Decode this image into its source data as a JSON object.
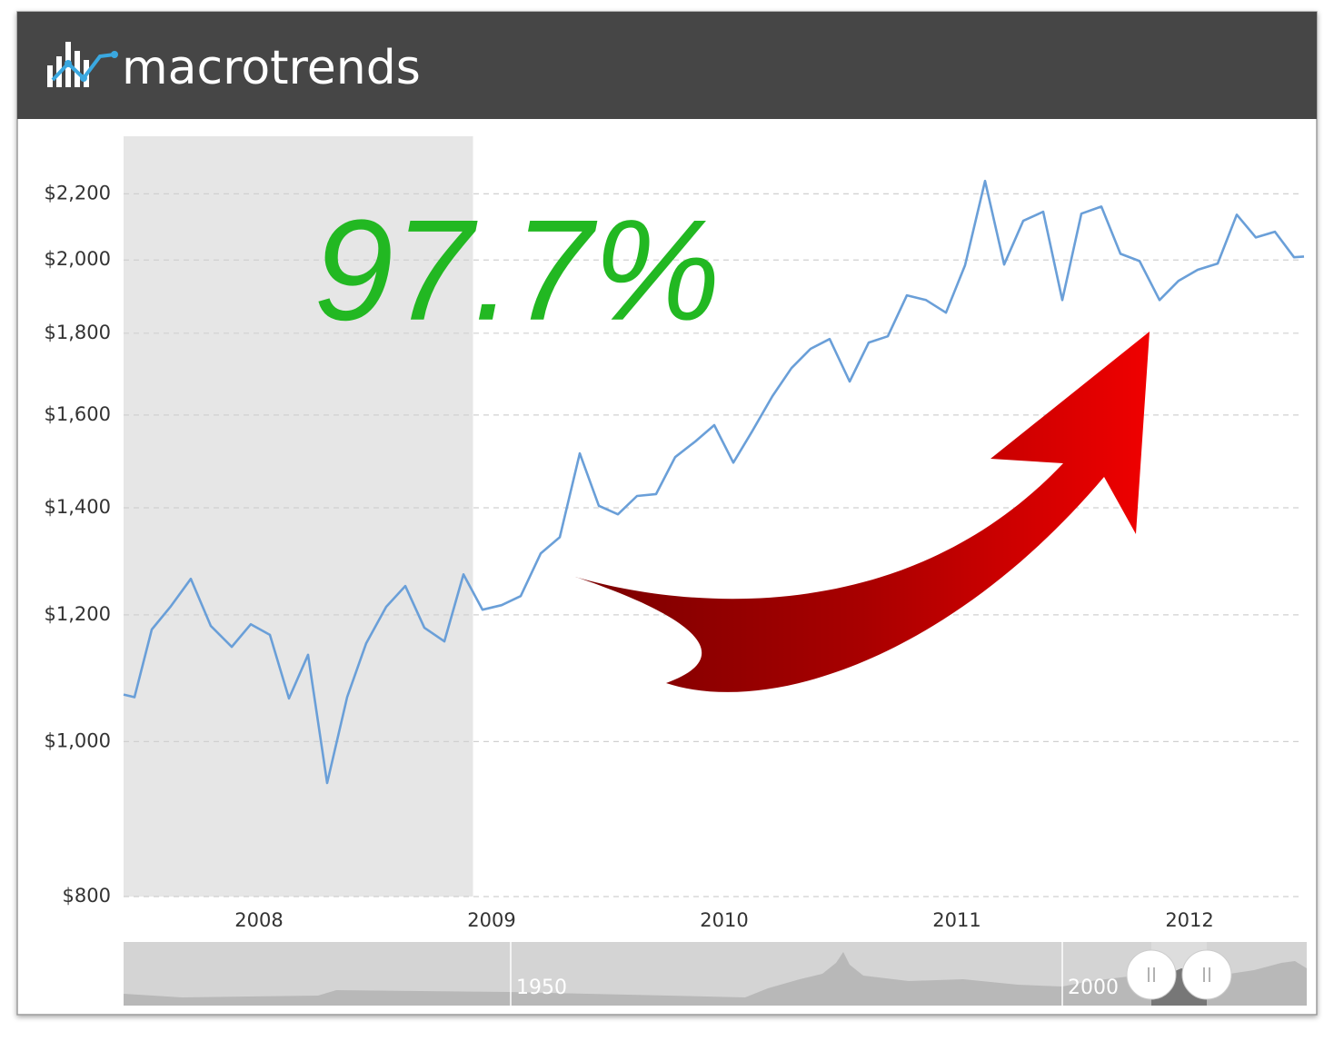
{
  "logo": "macrotrends",
  "chart_data": {
    "type": "line",
    "annotation": "97.7%",
    "yscale": "log",
    "grid": true,
    "ylim": [
      800,
      2390
    ],
    "yticks": [
      {
        "value": 800,
        "label": "$800"
      },
      {
        "value": 1000,
        "label": "$1,000"
      },
      {
        "value": 1200,
        "label": "$1,200"
      },
      {
        "value": 1400,
        "label": "$1,400"
      },
      {
        "value": 1600,
        "label": "$1,600"
      },
      {
        "value": 1800,
        "label": "$1,800"
      },
      {
        "value": 2000,
        "label": "$2,000"
      },
      {
        "value": 2200,
        "label": "$2,200"
      }
    ],
    "xlim": [
      2007.418,
      2012.492
    ],
    "xticks": [
      2008,
      2009,
      2010,
      2011,
      2012
    ],
    "shaded_range": [
      2007.418,
      2008.92
    ],
    "x": [
      2007.418,
      2007.465,
      2007.539,
      2007.621,
      2007.707,
      2007.793,
      2007.883,
      2007.965,
      2008.047,
      2008.129,
      2008.211,
      2008.293,
      2008.379,
      2008.461,
      2008.547,
      2008.629,
      2008.711,
      2008.797,
      2008.879,
      2008.961,
      2009.043,
      2009.125,
      2009.211,
      2009.293,
      2009.379,
      2009.461,
      2009.543,
      2009.625,
      2009.707,
      2009.789,
      2009.875,
      2009.957,
      2010.039,
      2010.121,
      2010.207,
      2010.289,
      2010.371,
      2010.453,
      2010.539,
      2010.621,
      2010.703,
      2010.785,
      2010.867,
      2010.953,
      2011.035,
      2011.121,
      2011.203,
      2011.285,
      2011.371,
      2011.453,
      2011.535,
      2011.621,
      2011.703,
      2011.785,
      2011.871,
      2011.953,
      2012.035,
      2012.121,
      2012.203,
      2012.285,
      2012.367,
      2012.449,
      2012.492
    ],
    "series": [
      {
        "color": "#6a9fd8",
        "values": [
          1070,
          1066,
          1175,
          1215,
          1264,
          1181,
          1146,
          1184,
          1166,
          1064,
          1133,
          942,
          1066,
          1152,
          1214,
          1251,
          1178,
          1155,
          1272,
          1209,
          1217,
          1233,
          1311,
          1342,
          1514,
          1404,
          1387,
          1424,
          1428,
          1506,
          1540,
          1577,
          1494,
          1564,
          1644,
          1712,
          1760,
          1785,
          1679,
          1776,
          1792,
          1901,
          1888,
          1854,
          1985,
          2241,
          1987,
          2116,
          2144,
          1888,
          2138,
          2160,
          2018,
          1997,
          1888,
          1941,
          1972,
          1990,
          2135,
          2066,
          2083,
          2008,
          2010
        ]
      }
    ],
    "navigator_labels": [
      "1950",
      "2000"
    ]
  }
}
